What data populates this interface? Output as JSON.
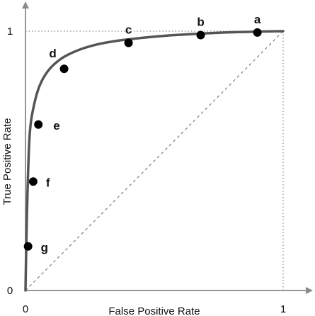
{
  "chart_data": {
    "type": "line",
    "title": "",
    "xlabel": "False Positive Rate",
    "ylabel": "True Positive Rate",
    "xlim": [
      0,
      1
    ],
    "ylim": [
      0,
      1
    ],
    "x_ticks": [
      "0",
      "1"
    ],
    "y_ticks": [
      "0",
      "1"
    ],
    "grid": false,
    "curve": {
      "x": [
        0,
        0.003,
        0.009,
        0.017,
        0.032,
        0.055,
        0.09,
        0.14,
        0.2,
        0.27,
        0.35,
        0.45,
        0.55,
        0.65,
        0.75,
        0.85,
        0.93,
        1
      ],
      "y": [
        0,
        0.17,
        0.42,
        0.61,
        0.71,
        0.79,
        0.85,
        0.895,
        0.925,
        0.947,
        0.962,
        0.974,
        0.983,
        0.989,
        0.994,
        0.997,
        0.999,
        1
      ]
    },
    "points": [
      {
        "label": "a",
        "x": 0.9,
        "y": 0.995
      },
      {
        "label": "b",
        "x": 0.68,
        "y": 0.985
      },
      {
        "label": "c",
        "x": 0.4,
        "y": 0.955
      },
      {
        "label": "d",
        "x": 0.15,
        "y": 0.855
      },
      {
        "label": "e",
        "x": 0.05,
        "y": 0.64
      },
      {
        "label": "f",
        "x": 0.03,
        "y": 0.42
      },
      {
        "label": "g",
        "x": 0.01,
        "y": 0.17
      }
    ],
    "reference_line": {
      "x": [
        0,
        1
      ],
      "y": [
        0,
        1
      ],
      "style": "dashed"
    },
    "guide_lines": "dotted lines at y = 1 and x = 1"
  }
}
